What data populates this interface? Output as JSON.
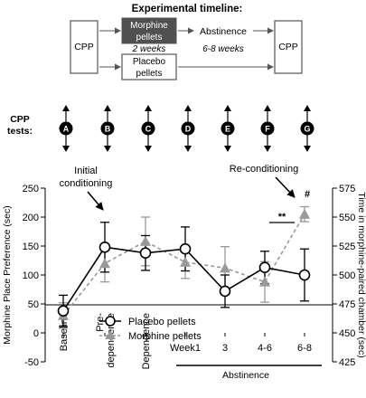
{
  "timeline": {
    "title": "Experimental timeline:",
    "cpp_left": "CPP",
    "cpp_right": "CPP",
    "morphine_box": [
      "Morphine",
      "pellets"
    ],
    "placebo_box": [
      "Placebo",
      "pellets"
    ],
    "duration_treatment": "2 weeks",
    "abstinence_label": "Abstinence",
    "duration_abstinence": "6-8 weeks"
  },
  "tests": {
    "label": [
      "CPP",
      "tests:"
    ],
    "letters": [
      "A",
      "B",
      "C",
      "D",
      "E",
      "F",
      "G"
    ]
  },
  "annotations": {
    "initial": [
      "Initial",
      "conditioning"
    ],
    "reconditioning": "Re-conditioning",
    "significance_between": "**",
    "significance_point": "#"
  },
  "colors": {
    "placebo": "#000000",
    "morphine": "#999999",
    "morphine_box_fill": "#505050"
  },
  "chart_data": {
    "type": "line",
    "categories": [
      "Baseline",
      "Pre-dependence",
      "Dependence",
      "Week1",
      "3",
      "4-6",
      "6-8"
    ],
    "category_lines": [
      [
        "Baseline"
      ],
      [
        "Pre-",
        "dependence"
      ],
      [
        "Dependence"
      ],
      [
        "Week1"
      ],
      [
        "3"
      ],
      [
        "4-6"
      ],
      [
        "6-8"
      ]
    ],
    "xgroup_label": "Abstinence",
    "ylabel_left": "Morphine Place Preference (sec)",
    "ylim_left": [
      -50,
      250
    ],
    "yticks_left": [
      -50,
      0,
      50,
      100,
      150,
      200,
      250
    ],
    "ylabel_right": "Time in morphine-paired chamber (sec)",
    "ylim_right": [
      425,
      575
    ],
    "yticks_right": [
      425,
      450,
      475,
      500,
      525,
      550,
      575
    ],
    "legend_position": "bottom-center",
    "series": [
      {
        "name": "Placebo pellets",
        "style": "solid-open-circle",
        "values": [
          38,
          148,
          138,
          145,
          72,
          113,
          100
        ],
        "errors": [
          27,
          43,
          30,
          38,
          28,
          28,
          45
        ]
      },
      {
        "name": "Morphine pellets",
        "style": "dashed-filled-triangle",
        "values": [
          30,
          120,
          158,
          122,
          112,
          88,
          205
        ],
        "errors": [
          22,
          32,
          42,
          28,
          37,
          35,
          13
        ]
      }
    ]
  }
}
